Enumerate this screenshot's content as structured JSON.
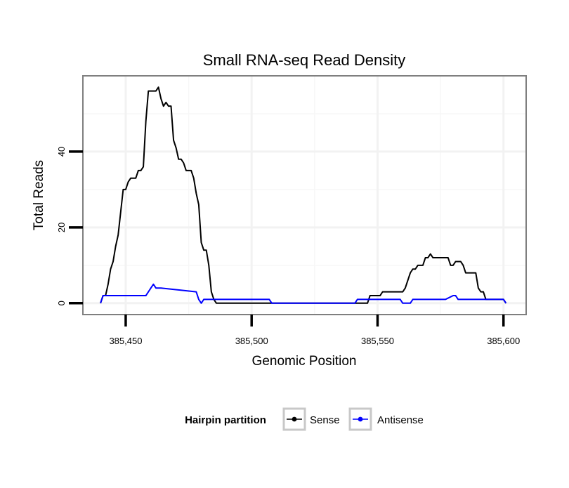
{
  "chart_data": {
    "type": "line",
    "title": "Small RNA-seq Read Density",
    "xlabel": "Genomic Position",
    "ylabel": "Total Reads",
    "xlim": [
      385433,
      385609
    ],
    "ylim": [
      -3,
      60
    ],
    "x_ticks": [
      385450,
      385500,
      385550,
      385600
    ],
    "x_tick_labels": [
      "385,450",
      "385,500",
      "385,550",
      "385,600"
    ],
    "y_ticks": [
      0,
      20,
      40
    ],
    "y_tick_labels": [
      "0",
      "20",
      "40"
    ],
    "legend": {
      "title": "Hairpin partition",
      "position": "bottom",
      "entries": [
        "Sense",
        "Antisense"
      ]
    },
    "series": [
      {
        "name": "Sense",
        "color": "#000000",
        "x": [
          385440,
          385441,
          385442,
          385443,
          385444,
          385445,
          385446,
          385447,
          385448,
          385449,
          385450,
          385451,
          385452,
          385453,
          385454,
          385455,
          385456,
          385457,
          385458,
          385459,
          385460,
          385461,
          385462,
          385463,
          385464,
          385465,
          385466,
          385467,
          385468,
          385469,
          385470,
          385471,
          385472,
          385473,
          385474,
          385475,
          385476,
          385477,
          385478,
          385479,
          385480,
          385481,
          385482,
          385483,
          385484,
          385485,
          385486,
          385546,
          385547,
          385550,
          385551,
          385552,
          385560,
          385561,
          385562,
          385563,
          385564,
          385565,
          385566,
          385567,
          385568,
          385569,
          385570,
          385571,
          385572,
          385573,
          385574,
          385575,
          385576,
          385577,
          385578,
          385579,
          385580,
          385581,
          385582,
          385583,
          385584,
          385585,
          385586,
          385587,
          385588,
          385589,
          385590,
          385591,
          385592,
          385593,
          385594,
          385595,
          385596,
          385597,
          385598,
          385599,
          385600,
          385601
        ],
        "y": [
          0,
          2,
          2,
          5,
          9,
          11,
          15,
          18,
          24,
          30,
          30,
          32,
          33,
          33,
          33,
          35,
          35,
          36,
          48,
          56,
          56,
          56,
          56,
          57,
          54,
          52,
          53,
          52,
          52,
          43,
          41,
          38,
          38,
          37,
          35,
          35,
          35,
          33,
          29,
          26,
          16,
          14,
          14,
          10,
          3,
          1,
          0,
          0,
          2,
          2,
          2,
          3,
          3,
          4,
          6,
          8,
          9,
          9,
          10,
          10,
          10,
          12,
          12,
          13,
          12,
          12,
          12,
          12,
          12,
          12,
          12,
          10,
          10,
          11,
          11,
          11,
          10,
          8,
          8,
          8,
          8,
          8,
          4,
          3,
          3,
          1,
          1,
          1,
          1,
          1,
          1,
          1,
          1,
          0
        ]
      },
      {
        "name": "Antisense",
        "color": "#0000ff",
        "x": [
          385440,
          385441,
          385458,
          385459,
          385460,
          385461,
          385462,
          385463,
          385464,
          385478,
          385479,
          385480,
          385481,
          385482,
          385483,
          385484,
          385485,
          385486,
          385507,
          385508,
          385541,
          385542,
          385547,
          385548,
          385559,
          385560,
          385563,
          385564,
          385576,
          385577,
          385580,
          385581,
          385582,
          385583,
          385600,
          385601
        ],
        "y": [
          0,
          2,
          2,
          3,
          4,
          5,
          4,
          4,
          4,
          3,
          1,
          0,
          1,
          1,
          1,
          1,
          1,
          1,
          1,
          0,
          0,
          1,
          1,
          1,
          1,
          0,
          0,
          1,
          1,
          1,
          2,
          2,
          1,
          1,
          1,
          0
        ]
      }
    ]
  }
}
